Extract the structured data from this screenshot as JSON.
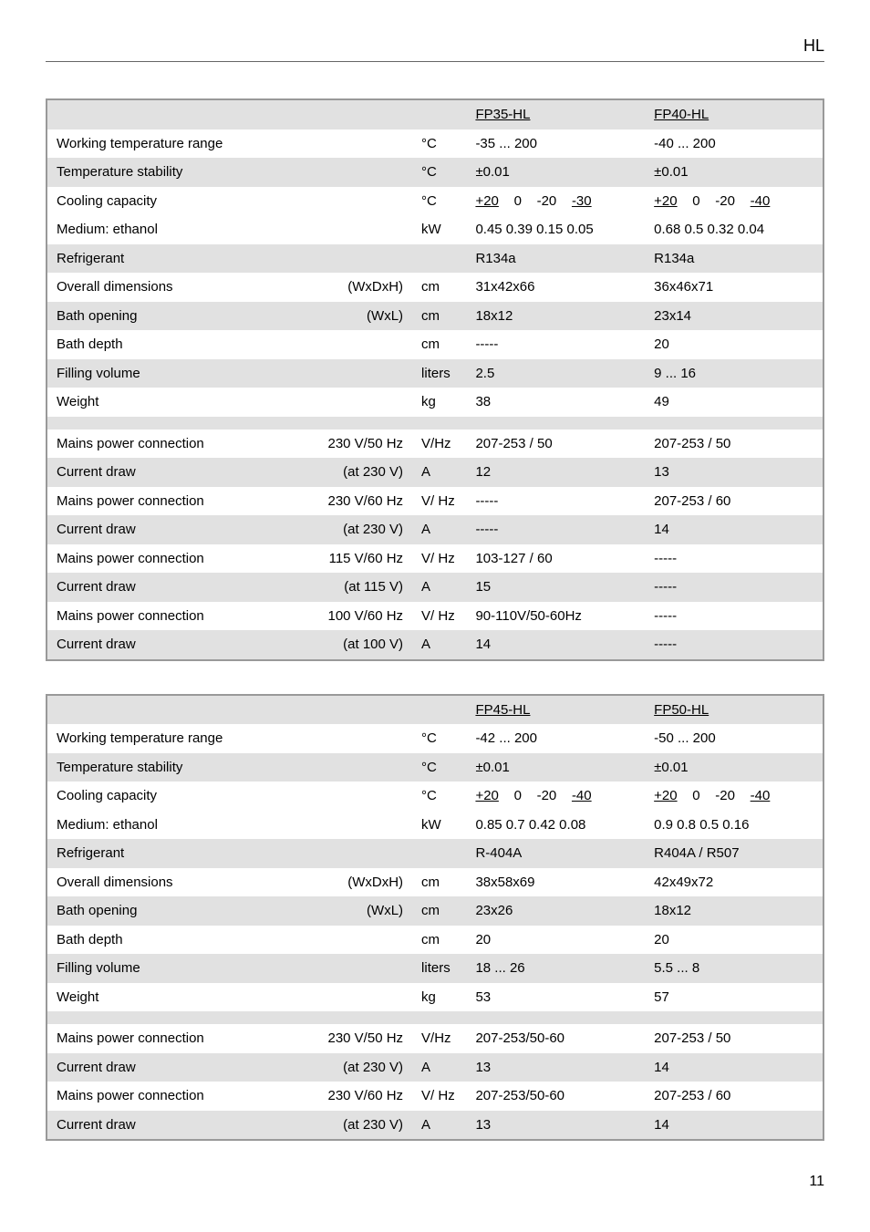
{
  "header": {
    "title": "HL"
  },
  "table1": {
    "models": [
      "FP35-HL",
      "FP40-HL"
    ],
    "rows": [
      {
        "label": "Working temperature range",
        "paren": "",
        "unit": "°C",
        "v1": "-35 ... 200",
        "v2": "-40 ... 200",
        "shaded": false,
        "underlineModel": true
      },
      {
        "label": "Temperature stability",
        "paren": "",
        "unit": "°C",
        "v1": "±0.01",
        "v2": "±0.01",
        "shaded": true
      },
      {
        "label": "Cooling capacity",
        "paren": "",
        "unit": "°C",
        "v1_html": "cool1a",
        "v2_html": "cool1b",
        "shaded": false
      },
      {
        "label": "Medium: ethanol",
        "paren": "",
        "unit": "kW",
        "v1": "0.45  0.39  0.15   0.05",
        "v2": "0.68   0.5   0.32    0.04",
        "shaded": false
      },
      {
        "label": "Refrigerant",
        "paren": "",
        "unit": "",
        "v1": "R134a",
        "v2": "R134a",
        "shaded": true
      },
      {
        "label": "Overall dimensions",
        "paren": "(WxDxH)",
        "unit": "cm",
        "v1": "31x42x66",
        "v2": "36x46x71",
        "shaded": false
      },
      {
        "label": "Bath opening",
        "paren": "(WxL)",
        "unit": "cm",
        "v1": "18x12",
        "v2": "23x14",
        "shaded": true
      },
      {
        "label": "Bath depth",
        "paren": "",
        "unit": "cm",
        "v1": "-----",
        "v2": "20",
        "shaded": false
      },
      {
        "label": "Filling volume",
        "paren": "",
        "unit": "liters",
        "v1": "2.5",
        "v2": "9 ... 16",
        "shaded": true
      },
      {
        "label": "Weight",
        "paren": "",
        "unit": "kg",
        "v1": "38",
        "v2": "49",
        "shaded": false
      },
      {
        "blank": true
      },
      {
        "label": "Mains power connection",
        "paren": "230 V/50 Hz",
        "unit": "V/Hz",
        "v1": "207-253 / 50",
        "v2": "207-253 / 50",
        "shaded": false
      },
      {
        "label": "Current draw",
        "paren": "(at 230 V)",
        "unit": "A",
        "v1": "12",
        "v2": "13",
        "shaded": true
      },
      {
        "label": "Mains power connection",
        "paren": "230 V/60 Hz",
        "unit": "V/ Hz",
        "v1": "-----",
        "v2": "207-253 / 60",
        "shaded": false
      },
      {
        "label": "Current draw",
        "paren": "(at 230 V)",
        "unit": "A",
        "v1": "-----",
        "v2": "14",
        "shaded": true
      },
      {
        "label": "Mains power connection",
        "paren": "115 V/60 Hz",
        "unit": "V/ Hz",
        "v1": "103-127 / 60",
        "v2": "-----",
        "shaded": false
      },
      {
        "label": "Current draw",
        "paren": "(at 115 V)",
        "unit": "A",
        "v1": "15",
        "v2": "-----",
        "shaded": true
      },
      {
        "label": "Mains power connection",
        "paren": "100 V/60 Hz",
        "unit": "V/ Hz",
        "v1": "90-110V/50-60Hz",
        "v2": "-----",
        "shaded": false
      },
      {
        "label": "Current draw",
        "paren": "(at 100 V)",
        "unit": "A",
        "v1": "14",
        "v2": "-----",
        "shaded": true
      }
    ]
  },
  "table2": {
    "models": [
      "FP45-HL",
      "FP50-HL"
    ],
    "rows": [
      {
        "label": "Working temperature range",
        "paren": "",
        "unit": "°C",
        "v1": "-42 ... 200",
        "v2": "-50 ... 200",
        "shaded": false,
        "underlineModel": true
      },
      {
        "label": "Temperature stability",
        "paren": "",
        "unit": "°C",
        "v1": "±0.01",
        "v2": "±0.01",
        "shaded": true
      },
      {
        "label": "Cooling capacity",
        "paren": "",
        "unit": "°C",
        "v1_html": "cool2a",
        "v2_html": "cool2b",
        "shaded": false
      },
      {
        "label": "Medium: ethanol",
        "paren": "",
        "unit": "kW",
        "v1": "0.85   0.7   0.42    0.08",
        "v2": "0.9    0.8    0.5    0.16",
        "shaded": false
      },
      {
        "label": "Refrigerant",
        "paren": "",
        "unit": "",
        "v1": "R-404A",
        "v2": "R404A / R507",
        "shaded": true
      },
      {
        "label": "Overall dimensions",
        "paren": "(WxDxH)",
        "unit": "cm",
        "v1": "38x58x69",
        "v2": "42x49x72",
        "shaded": false
      },
      {
        "label": "Bath opening",
        "paren": "(WxL)",
        "unit": "cm",
        "v1": "23x26",
        "v2": "18x12",
        "shaded": true
      },
      {
        "label": "Bath depth",
        "paren": "",
        "unit": "cm",
        "v1": "20",
        "v2": "20",
        "shaded": false
      },
      {
        "label": "Filling volume",
        "paren": "",
        "unit": "liters",
        "v1": "18 ... 26",
        "v2": "5.5 ... 8",
        "shaded": true
      },
      {
        "label": "Weight",
        "paren": "",
        "unit": "kg",
        "v1": "53",
        "v2": "57",
        "shaded": false
      },
      {
        "blank": true
      },
      {
        "label": "Mains power connection",
        "paren": "230 V/50 Hz",
        "unit": "V/Hz",
        "v1": "207-253/50-60",
        "v2": "207-253 / 50",
        "shaded": false
      },
      {
        "label": "Current draw",
        "paren": "(at 230 V)",
        "unit": "A",
        "v1": "13",
        "v2": "14",
        "shaded": true
      },
      {
        "label": "Mains power connection",
        "paren": "230 V/60 Hz",
        "unit": "V/ Hz",
        "v1": "207-253/50-60",
        "v2": "207-253 / 60",
        "shaded": false
      },
      {
        "label": "Current draw",
        "paren": "(at 230 V)",
        "unit": "A",
        "v1": "13",
        "v2": "14",
        "shaded": true
      }
    ]
  },
  "cool_vals": {
    "cool1a": [
      "+20",
      "0",
      "-20",
      "-30"
    ],
    "cool1b": [
      "+20",
      "0",
      "-20",
      "-40"
    ],
    "cool2a": [
      "+20",
      "0",
      "-20",
      "-40"
    ],
    "cool2b": [
      "+20",
      "0",
      "-20",
      "-40"
    ]
  },
  "footer": {
    "page": "11"
  }
}
